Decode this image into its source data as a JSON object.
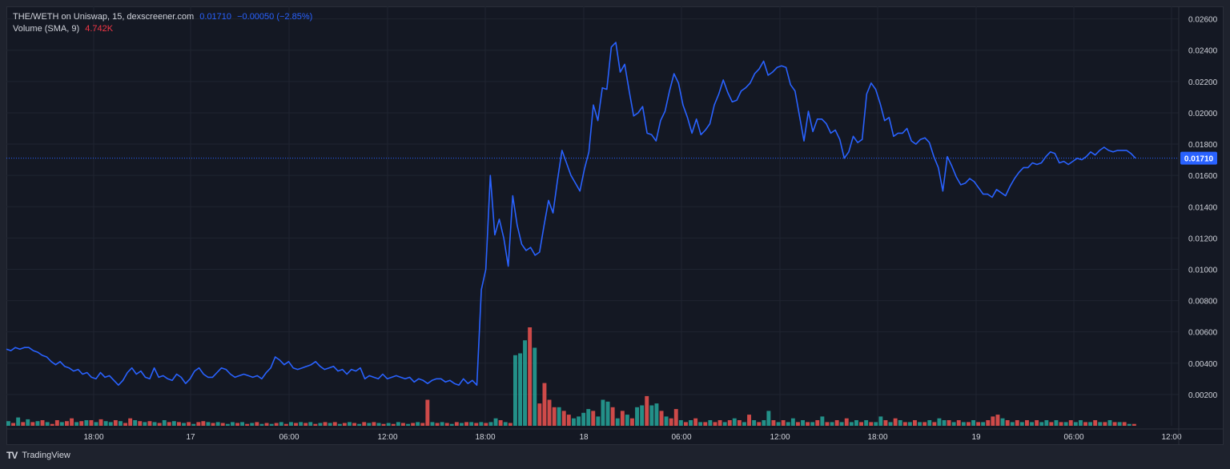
{
  "legend": {
    "symbol": "THE/WETH on Uniswap, 15, dexscreener.com",
    "last": "0.01710",
    "change": "−0.00050 (−2.85%)",
    "volume_label": "Volume (SMA, 9)",
    "volume_value": "4.742K"
  },
  "footer": {
    "brand": "TradingView",
    "logo": "TV"
  },
  "colors": {
    "line": "#2962ff",
    "up": "#26a69a",
    "down": "#ef5350",
    "grid": "#1f2430",
    "axis_text": "#d1d4dc",
    "price_tag": "#2962ff"
  },
  "chart_data": {
    "type": "line",
    "title": "THE/WETH on Uniswap, 15, dexscreener.com",
    "interval_minutes": 15,
    "ylim": [
      0.0,
      0.0268
    ],
    "y_ticks": [
      "0.02600",
      "0.02400",
      "0.02200",
      "0.02000",
      "0.01800",
      "0.01600",
      "0.01400",
      "0.01200",
      "0.01000",
      "0.00800",
      "0.00600",
      "0.00400",
      "0.00200"
    ],
    "x_ticks": [
      "18:00",
      "17",
      "06:00",
      "12:00",
      "18:00",
      "18",
      "06:00",
      "12:00",
      "18:00",
      "19",
      "06:00",
      "12:00"
    ],
    "last_price": "0.01710",
    "grid": true,
    "series": [
      {
        "values": [
          0.0049,
          0.0048,
          0.005,
          0.0049,
          0.005,
          0.005,
          0.0048,
          0.0047,
          0.0045,
          0.0044,
          0.0041,
          0.0039,
          0.0041,
          0.0038,
          0.0037,
          0.0035,
          0.0036,
          0.0033,
          0.0034,
          0.0031,
          0.003,
          0.0034,
          0.0031,
          0.0032,
          0.0029,
          0.0026,
          0.0029,
          0.0034,
          0.0037,
          0.0033,
          0.0035,
          0.0031,
          0.003,
          0.0037,
          0.0031,
          0.0032,
          0.003,
          0.0029,
          0.0033,
          0.0031,
          0.0027,
          0.003,
          0.0035,
          0.0037,
          0.0033,
          0.0031,
          0.0031,
          0.0034,
          0.0037,
          0.0036,
          0.0033,
          0.0031,
          0.0032,
          0.0033,
          0.0032,
          0.0031,
          0.0032,
          0.003,
          0.0034,
          0.0037,
          0.0044,
          0.0042,
          0.0039,
          0.0041,
          0.0037,
          0.0036,
          0.0037,
          0.0038,
          0.0039,
          0.0041,
          0.0038,
          0.0036,
          0.0037,
          0.0038,
          0.0035,
          0.0036,
          0.0033,
          0.0036,
          0.0035,
          0.0037,
          0.003,
          0.0032,
          0.0031,
          0.003,
          0.0033,
          0.003,
          0.0031,
          0.0032,
          0.0031,
          0.003,
          0.0031,
          0.0028,
          0.003,
          0.0029,
          0.0027,
          0.0029,
          0.003,
          0.003,
          0.0028,
          0.0029,
          0.0027,
          0.0026,
          0.003,
          0.0027,
          0.0029,
          0.0026,
          0.0087,
          0.01,
          0.016,
          0.0122,
          0.0132,
          0.012,
          0.0102,
          0.0147,
          0.0128,
          0.0116,
          0.0112,
          0.0114,
          0.0109,
          0.0111,
          0.0128,
          0.0144,
          0.0136,
          0.0157,
          0.0176,
          0.0168,
          0.016,
          0.0155,
          0.015,
          0.0164,
          0.0175,
          0.0205,
          0.0195,
          0.0216,
          0.0215,
          0.0242,
          0.0245,
          0.0226,
          0.0231,
          0.0214,
          0.0198,
          0.02,
          0.0204,
          0.0187,
          0.0186,
          0.0182,
          0.0195,
          0.0201,
          0.0214,
          0.0225,
          0.0219,
          0.0205,
          0.0197,
          0.0187,
          0.0196,
          0.0186,
          0.0189,
          0.0193,
          0.0205,
          0.0212,
          0.0221,
          0.0213,
          0.0207,
          0.0208,
          0.0214,
          0.0216,
          0.0219,
          0.0225,
          0.0228,
          0.0233,
          0.0224,
          0.0226,
          0.0229,
          0.023,
          0.0229,
          0.0218,
          0.0214,
          0.0198,
          0.0182,
          0.0201,
          0.0188,
          0.0196,
          0.0196,
          0.0193,
          0.0187,
          0.0189,
          0.0183,
          0.0171,
          0.0175,
          0.0185,
          0.0181,
          0.0183,
          0.0212,
          0.0219,
          0.0215,
          0.0206,
          0.0195,
          0.0197,
          0.0185,
          0.0187,
          0.0187,
          0.019,
          0.0182,
          0.018,
          0.0183,
          0.0184,
          0.0181,
          0.0172,
          0.0165,
          0.015,
          0.0172,
          0.0166,
          0.0159,
          0.0154,
          0.0155,
          0.0158,
          0.0156,
          0.0152,
          0.0148,
          0.0148,
          0.0146,
          0.0151,
          0.0149,
          0.0147,
          0.0153,
          0.0158,
          0.0162,
          0.0165,
          0.0165,
          0.0168,
          0.0167,
          0.0168,
          0.0172,
          0.0175,
          0.0174,
          0.0168,
          0.0169,
          0.0167,
          0.0169,
          0.0171,
          0.017,
          0.0172,
          0.0175,
          0.0173,
          0.0176,
          0.0178,
          0.0176,
          0.0175,
          0.0176,
          0.0176,
          0.0176,
          0.0174,
          0.0171
        ]
      }
    ],
    "volume": [
      {
        "v": 0.25,
        "d": "up"
      },
      {
        "v": 0.15,
        "d": "down"
      },
      {
        "v": 0.45,
        "d": "up"
      },
      {
        "v": 0.2,
        "d": "down"
      },
      {
        "v": 0.35,
        "d": "up"
      },
      {
        "v": 0.2,
        "d": "down"
      },
      {
        "v": 0.25,
        "d": "up"
      },
      {
        "v": 0.3,
        "d": "down"
      },
      {
        "v": 0.2,
        "d": "up"
      },
      {
        "v": 0.1,
        "d": "down"
      },
      {
        "v": 0.3,
        "d": "down"
      },
      {
        "v": 0.2,
        "d": "up"
      },
      {
        "v": 0.25,
        "d": "down"
      },
      {
        "v": 0.4,
        "d": "down"
      },
      {
        "v": 0.2,
        "d": "up"
      },
      {
        "v": 0.25,
        "d": "down"
      },
      {
        "v": 0.3,
        "d": "up"
      },
      {
        "v": 0.3,
        "d": "down"
      },
      {
        "v": 0.2,
        "d": "up"
      },
      {
        "v": 0.35,
        "d": "down"
      },
      {
        "v": 0.25,
        "d": "up"
      },
      {
        "v": 0.2,
        "d": "up"
      },
      {
        "v": 0.3,
        "d": "down"
      },
      {
        "v": 0.25,
        "d": "up"
      },
      {
        "v": 0.15,
        "d": "down"
      },
      {
        "v": 0.4,
        "d": "down"
      },
      {
        "v": 0.3,
        "d": "up"
      },
      {
        "v": 0.25,
        "d": "down"
      },
      {
        "v": 0.2,
        "d": "up"
      },
      {
        "v": 0.25,
        "d": "down"
      },
      {
        "v": 0.2,
        "d": "up"
      },
      {
        "v": 0.15,
        "d": "down"
      },
      {
        "v": 0.3,
        "d": "up"
      },
      {
        "v": 0.2,
        "d": "down"
      },
      {
        "v": 0.25,
        "d": "up"
      },
      {
        "v": 0.2,
        "d": "down"
      },
      {
        "v": 0.15,
        "d": "up"
      },
      {
        "v": 0.2,
        "d": "down"
      },
      {
        "v": 0.1,
        "d": "up"
      },
      {
        "v": 0.2,
        "d": "down"
      },
      {
        "v": 0.25,
        "d": "down"
      },
      {
        "v": 0.2,
        "d": "up"
      },
      {
        "v": 0.15,
        "d": "down"
      },
      {
        "v": 0.2,
        "d": "up"
      },
      {
        "v": 0.15,
        "d": "down"
      },
      {
        "v": 0.1,
        "d": "up"
      },
      {
        "v": 0.2,
        "d": "up"
      },
      {
        "v": 0.15,
        "d": "down"
      },
      {
        "v": 0.2,
        "d": "up"
      },
      {
        "v": 0.1,
        "d": "down"
      },
      {
        "v": 0.15,
        "d": "up"
      },
      {
        "v": 0.2,
        "d": "down"
      },
      {
        "v": 0.1,
        "d": "up"
      },
      {
        "v": 0.15,
        "d": "down"
      },
      {
        "v": 0.1,
        "d": "up"
      },
      {
        "v": 0.15,
        "d": "down"
      },
      {
        "v": 0.2,
        "d": "up"
      },
      {
        "v": 0.1,
        "d": "down"
      },
      {
        "v": 0.2,
        "d": "up"
      },
      {
        "v": 0.15,
        "d": "down"
      },
      {
        "v": 0.2,
        "d": "up"
      },
      {
        "v": 0.15,
        "d": "down"
      },
      {
        "v": 0.2,
        "d": "up"
      },
      {
        "v": 0.1,
        "d": "down"
      },
      {
        "v": 0.15,
        "d": "up"
      },
      {
        "v": 0.2,
        "d": "down"
      },
      {
        "v": 0.15,
        "d": "up"
      },
      {
        "v": 0.2,
        "d": "down"
      },
      {
        "v": 0.1,
        "d": "up"
      },
      {
        "v": 0.15,
        "d": "down"
      },
      {
        "v": 0.2,
        "d": "up"
      },
      {
        "v": 0.15,
        "d": "down"
      },
      {
        "v": 0.1,
        "d": "up"
      },
      {
        "v": 0.2,
        "d": "down"
      },
      {
        "v": 0.15,
        "d": "up"
      },
      {
        "v": 0.2,
        "d": "down"
      },
      {
        "v": 0.15,
        "d": "up"
      },
      {
        "v": 0.1,
        "d": "down"
      },
      {
        "v": 0.15,
        "d": "up"
      },
      {
        "v": 0.1,
        "d": "down"
      },
      {
        "v": 0.2,
        "d": "up"
      },
      {
        "v": 0.15,
        "d": "down"
      },
      {
        "v": 0.1,
        "d": "up"
      },
      {
        "v": 0.15,
        "d": "down"
      },
      {
        "v": 0.2,
        "d": "up"
      },
      {
        "v": 0.15,
        "d": "down"
      },
      {
        "v": 1.4,
        "d": "down"
      },
      {
        "v": 0.2,
        "d": "up"
      },
      {
        "v": 0.15,
        "d": "down"
      },
      {
        "v": 0.2,
        "d": "up"
      },
      {
        "v": 0.15,
        "d": "down"
      },
      {
        "v": 0.1,
        "d": "up"
      },
      {
        "v": 0.2,
        "d": "down"
      },
      {
        "v": 0.15,
        "d": "up"
      },
      {
        "v": 0.2,
        "d": "down"
      },
      {
        "v": 0.2,
        "d": "up"
      },
      {
        "v": 0.15,
        "d": "down"
      },
      {
        "v": 0.2,
        "d": "up"
      },
      {
        "v": 0.15,
        "d": "down"
      },
      {
        "v": 0.2,
        "d": "up"
      },
      {
        "v": 0.4,
        "d": "up"
      },
      {
        "v": 0.3,
        "d": "down"
      },
      {
        "v": 0.2,
        "d": "up"
      },
      {
        "v": 0.15,
        "d": "down"
      },
      {
        "v": 3.8,
        "d": "up"
      },
      {
        "v": 3.9,
        "d": "up"
      },
      {
        "v": 4.6,
        "d": "up"
      },
      {
        "v": 5.3,
        "d": "down"
      },
      {
        "v": 4.2,
        "d": "up"
      },
      {
        "v": 1.2,
        "d": "down"
      },
      {
        "v": 2.3,
        "d": "down"
      },
      {
        "v": 1.4,
        "d": "down"
      },
      {
        "v": 1.0,
        "d": "down"
      },
      {
        "v": 1.0,
        "d": "up"
      },
      {
        "v": 0.8,
        "d": "down"
      },
      {
        "v": 0.6,
        "d": "down"
      },
      {
        "v": 0.4,
        "d": "up"
      },
      {
        "v": 0.5,
        "d": "up"
      },
      {
        "v": 0.7,
        "d": "up"
      },
      {
        "v": 0.9,
        "d": "up"
      },
      {
        "v": 0.8,
        "d": "down"
      },
      {
        "v": 0.5,
        "d": "up"
      },
      {
        "v": 1.4,
        "d": "up"
      },
      {
        "v": 1.3,
        "d": "up"
      },
      {
        "v": 1.0,
        "d": "down"
      },
      {
        "v": 0.4,
        "d": "up"
      },
      {
        "v": 0.8,
        "d": "down"
      },
      {
        "v": 0.6,
        "d": "up"
      },
      {
        "v": 0.4,
        "d": "down"
      },
      {
        "v": 1.0,
        "d": "up"
      },
      {
        "v": 1.1,
        "d": "up"
      },
      {
        "v": 1.6,
        "d": "down"
      },
      {
        "v": 1.1,
        "d": "up"
      },
      {
        "v": 1.2,
        "d": "up"
      },
      {
        "v": 0.8,
        "d": "down"
      },
      {
        "v": 0.5,
        "d": "up"
      },
      {
        "v": 0.4,
        "d": "down"
      },
      {
        "v": 0.9,
        "d": "down"
      },
      {
        "v": 0.3,
        "d": "up"
      },
      {
        "v": 0.2,
        "d": "down"
      },
      {
        "v": 0.3,
        "d": "up"
      },
      {
        "v": 0.4,
        "d": "down"
      },
      {
        "v": 0.2,
        "d": "up"
      },
      {
        "v": 0.2,
        "d": "down"
      },
      {
        "v": 0.3,
        "d": "up"
      },
      {
        "v": 0.2,
        "d": "down"
      },
      {
        "v": 0.3,
        "d": "down"
      },
      {
        "v": 0.2,
        "d": "up"
      },
      {
        "v": 0.3,
        "d": "down"
      },
      {
        "v": 0.4,
        "d": "up"
      },
      {
        "v": 0.3,
        "d": "down"
      },
      {
        "v": 0.2,
        "d": "up"
      },
      {
        "v": 0.6,
        "d": "down"
      },
      {
        "v": 0.3,
        "d": "up"
      },
      {
        "v": 0.2,
        "d": "down"
      },
      {
        "v": 0.3,
        "d": "up"
      },
      {
        "v": 0.8,
        "d": "up"
      },
      {
        "v": 0.3,
        "d": "down"
      },
      {
        "v": 0.2,
        "d": "up"
      },
      {
        "v": 0.3,
        "d": "down"
      },
      {
        "v": 0.2,
        "d": "up"
      },
      {
        "v": 0.4,
        "d": "up"
      },
      {
        "v": 0.2,
        "d": "down"
      },
      {
        "v": 0.3,
        "d": "up"
      },
      {
        "v": 0.2,
        "d": "down"
      },
      {
        "v": 0.2,
        "d": "up"
      },
      {
        "v": 0.3,
        "d": "down"
      },
      {
        "v": 0.5,
        "d": "up"
      },
      {
        "v": 0.2,
        "d": "down"
      },
      {
        "v": 0.2,
        "d": "up"
      },
      {
        "v": 0.3,
        "d": "down"
      },
      {
        "v": 0.2,
        "d": "up"
      },
      {
        "v": 0.4,
        "d": "down"
      },
      {
        "v": 0.2,
        "d": "up"
      },
      {
        "v": 0.3,
        "d": "up"
      },
      {
        "v": 0.2,
        "d": "down"
      },
      {
        "v": 0.3,
        "d": "up"
      },
      {
        "v": 0.2,
        "d": "down"
      },
      {
        "v": 0.2,
        "d": "up"
      },
      {
        "v": 0.5,
        "d": "up"
      },
      {
        "v": 0.3,
        "d": "down"
      },
      {
        "v": 0.2,
        "d": "up"
      },
      {
        "v": 0.4,
        "d": "down"
      },
      {
        "v": 0.3,
        "d": "up"
      },
      {
        "v": 0.2,
        "d": "down"
      },
      {
        "v": 0.2,
        "d": "up"
      },
      {
        "v": 0.3,
        "d": "down"
      },
      {
        "v": 0.2,
        "d": "up"
      },
      {
        "v": 0.2,
        "d": "down"
      },
      {
        "v": 0.3,
        "d": "up"
      },
      {
        "v": 0.2,
        "d": "down"
      },
      {
        "v": 0.4,
        "d": "up"
      },
      {
        "v": 0.3,
        "d": "up"
      },
      {
        "v": 0.3,
        "d": "down"
      },
      {
        "v": 0.2,
        "d": "up"
      },
      {
        "v": 0.3,
        "d": "down"
      },
      {
        "v": 0.2,
        "d": "up"
      },
      {
        "v": 0.2,
        "d": "down"
      },
      {
        "v": 0.3,
        "d": "up"
      },
      {
        "v": 0.2,
        "d": "down"
      },
      {
        "v": 0.2,
        "d": "up"
      },
      {
        "v": 0.3,
        "d": "down"
      },
      {
        "v": 0.5,
        "d": "down"
      },
      {
        "v": 0.6,
        "d": "down"
      },
      {
        "v": 0.4,
        "d": "up"
      },
      {
        "v": 0.3,
        "d": "down"
      },
      {
        "v": 0.2,
        "d": "up"
      },
      {
        "v": 0.3,
        "d": "down"
      },
      {
        "v": 0.2,
        "d": "up"
      },
      {
        "v": 0.3,
        "d": "down"
      },
      {
        "v": 0.2,
        "d": "up"
      },
      {
        "v": 0.3,
        "d": "down"
      },
      {
        "v": 0.2,
        "d": "up"
      },
      {
        "v": 0.3,
        "d": "up"
      },
      {
        "v": 0.2,
        "d": "down"
      },
      {
        "v": 0.3,
        "d": "up"
      },
      {
        "v": 0.2,
        "d": "down"
      },
      {
        "v": 0.2,
        "d": "up"
      },
      {
        "v": 0.3,
        "d": "down"
      },
      {
        "v": 0.2,
        "d": "up"
      },
      {
        "v": 0.3,
        "d": "up"
      },
      {
        "v": 0.2,
        "d": "down"
      },
      {
        "v": 0.2,
        "d": "up"
      },
      {
        "v": 0.3,
        "d": "down"
      },
      {
        "v": 0.2,
        "d": "up"
      },
      {
        "v": 0.2,
        "d": "down"
      },
      {
        "v": 0.3,
        "d": "up"
      },
      {
        "v": 0.2,
        "d": "down"
      },
      {
        "v": 0.2,
        "d": "up"
      },
      {
        "v": 0.2,
        "d": "down"
      },
      {
        "v": 0.1,
        "d": "up"
      },
      {
        "v": 0.1,
        "d": "down"
      }
    ]
  }
}
